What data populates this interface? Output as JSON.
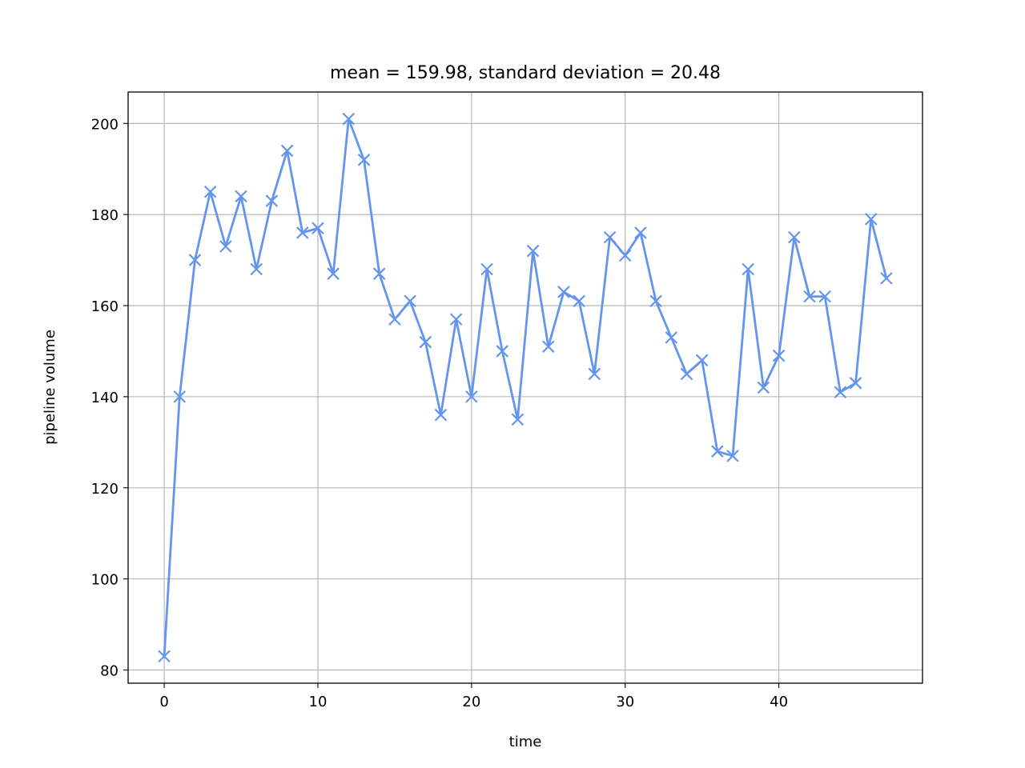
{
  "chart_data": {
    "type": "line",
    "title": "mean = 159.98, standard deviation = 20.48",
    "xlabel": "time",
    "ylabel": "pipeline volume",
    "xlim": [
      -2.35,
      49.35
    ],
    "ylim": [
      77.1,
      206.9
    ],
    "xticks": [
      0,
      10,
      20,
      30,
      40
    ],
    "yticks": [
      80,
      100,
      120,
      140,
      160,
      180,
      200
    ],
    "xtick_labels": [
      "0",
      "10",
      "20",
      "30",
      "40"
    ],
    "ytick_labels": [
      "80",
      "100",
      "120",
      "140",
      "160",
      "180",
      "200"
    ],
    "grid": true,
    "marker": "x",
    "line_color": "#6495ED",
    "x": [
      0,
      1,
      2,
      3,
      4,
      5,
      6,
      7,
      8,
      9,
      10,
      11,
      12,
      13,
      14,
      15,
      16,
      17,
      18,
      19,
      20,
      21,
      22,
      23,
      24,
      25,
      26,
      27,
      28,
      29,
      30,
      31,
      32,
      33,
      34,
      35,
      36,
      37,
      38,
      39,
      40,
      41,
      42,
      43,
      44,
      45,
      46,
      47
    ],
    "y": [
      83,
      140,
      170,
      185,
      173,
      184,
      168,
      183,
      194,
      176,
      177,
      167,
      201,
      192,
      167,
      157,
      161,
      152,
      136,
      157,
      140,
      168,
      150,
      135,
      172,
      151,
      163,
      161,
      145,
      175,
      171,
      176,
      161,
      153,
      145,
      148,
      128,
      127,
      168,
      142,
      149,
      175,
      162,
      162,
      141,
      143,
      179,
      166
    ]
  }
}
